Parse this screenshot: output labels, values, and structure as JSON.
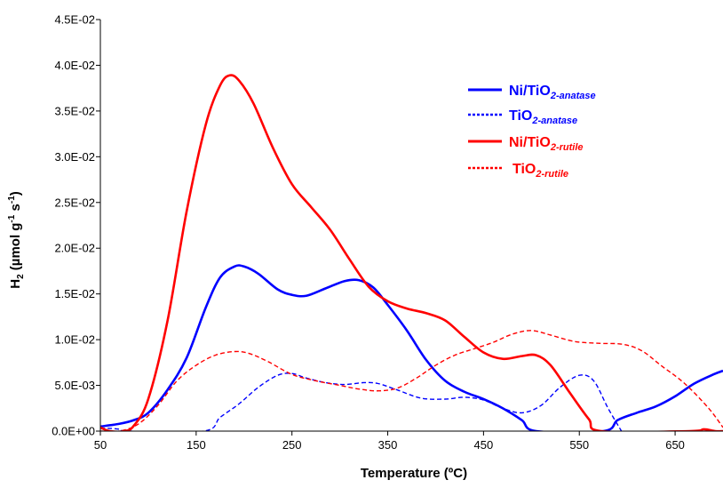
{
  "chart_data": {
    "type": "line",
    "xlabel": "Temperature (ºC)",
    "ylabel_main": "H",
    "ylabel_sub": "2",
    "ylabel_unit_a": " (µmol g",
    "ylabel_sup1": "-1",
    "ylabel_unit_b": " s",
    "ylabel_sup2": "-1",
    "ylabel_close": ")",
    "xlim": [
      50,
      700
    ],
    "ylim": [
      0,
      0.045
    ],
    "x_ticks": [
      50,
      150,
      250,
      350,
      450,
      550,
      650
    ],
    "x_tick_labels": [
      "50",
      "150",
      "250",
      "350",
      "450",
      "550",
      "650"
    ],
    "y_ticks": [
      0,
      0.005,
      0.01,
      0.015,
      0.02,
      0.025,
      0.03,
      0.035,
      0.04,
      0.045
    ],
    "y_tick_labels": [
      "0.0E+00",
      "5.0E-03",
      "1.0E-02",
      "1.5E-02",
      "2.0E-02",
      "2.5E-02",
      "3.0E-02",
      "3.5E-02",
      "4.0E-02",
      "4.5E-02"
    ],
    "grid": false,
    "legend_position": "top-right",
    "series": [
      {
        "name_main": "Ni/TiO",
        "name_sub": "2-anatase",
        "color": "#0000ff",
        "style": "solid",
        "points": [
          [
            50,
            0.0005
          ],
          [
            70,
            0.0008
          ],
          [
            85,
            0.0012
          ],
          [
            100,
            0.002
          ],
          [
            120,
            0.0045
          ],
          [
            140,
            0.008
          ],
          [
            160,
            0.0135
          ],
          [
            175,
            0.0168
          ],
          [
            190,
            0.018
          ],
          [
            200,
            0.018
          ],
          [
            215,
            0.0172
          ],
          [
            235,
            0.0155
          ],
          [
            250,
            0.0149
          ],
          [
            265,
            0.0148
          ],
          [
            285,
            0.0156
          ],
          [
            305,
            0.0164
          ],
          [
            320,
            0.0165
          ],
          [
            335,
            0.0157
          ],
          [
            350,
            0.0138
          ],
          [
            370,
            0.011
          ],
          [
            390,
            0.0078
          ],
          [
            410,
            0.0055
          ],
          [
            430,
            0.0043
          ],
          [
            450,
            0.0035
          ],
          [
            470,
            0.0025
          ],
          [
            490,
            0.0012
          ],
          [
            505,
            0.0
          ],
          [
            575,
            0.0
          ],
          [
            590,
            0.0012
          ],
          [
            610,
            0.002
          ],
          [
            630,
            0.0027
          ],
          [
            650,
            0.0038
          ],
          [
            670,
            0.0052
          ],
          [
            690,
            0.0062
          ],
          [
            700,
            0.0066
          ]
        ]
      },
      {
        "name_main": "TiO",
        "name_sub": "2-anatase",
        "color": "#0000ff",
        "style": "dashed",
        "points": [
          [
            50,
            0.0003
          ],
          [
            60,
            0.0003
          ],
          [
            70,
            0.0002
          ],
          [
            80,
            0.0
          ],
          [
            158,
            0.0
          ],
          [
            175,
            0.0015
          ],
          [
            195,
            0.003
          ],
          [
            215,
            0.0048
          ],
          [
            235,
            0.0061
          ],
          [
            250,
            0.0063
          ],
          [
            265,
            0.0058
          ],
          [
            285,
            0.0053
          ],
          [
            305,
            0.0051
          ],
          [
            325,
            0.0053
          ],
          [
            340,
            0.0052
          ],
          [
            360,
            0.0045
          ],
          [
            385,
            0.0036
          ],
          [
            410,
            0.0035
          ],
          [
            430,
            0.0037
          ],
          [
            450,
            0.0034
          ],
          [
            470,
            0.0025
          ],
          [
            490,
            0.002
          ],
          [
            510,
            0.0028
          ],
          [
            530,
            0.0048
          ],
          [
            550,
            0.0061
          ],
          [
            565,
            0.0055
          ],
          [
            580,
            0.0025
          ],
          [
            594,
            0.0
          ]
        ]
      },
      {
        "name_main": "Ni/TiO",
        "name_sub": "2-rutile",
        "color": "#ff0000",
        "style": "solid",
        "points": [
          [
            50,
            0.0004
          ],
          [
            60,
            0.0
          ],
          [
            75,
            0.0
          ],
          [
            85,
            0.0006
          ],
          [
            100,
            0.0035
          ],
          [
            120,
            0.012
          ],
          [
            140,
            0.024
          ],
          [
            160,
            0.0335
          ],
          [
            175,
            0.0378
          ],
          [
            185,
            0.0389
          ],
          [
            195,
            0.0383
          ],
          [
            210,
            0.0358
          ],
          [
            230,
            0.031
          ],
          [
            250,
            0.027
          ],
          [
            270,
            0.0245
          ],
          [
            290,
            0.022
          ],
          [
            310,
            0.0188
          ],
          [
            330,
            0.0158
          ],
          [
            350,
            0.0142
          ],
          [
            370,
            0.0134
          ],
          [
            390,
            0.0129
          ],
          [
            410,
            0.0121
          ],
          [
            430,
            0.0103
          ],
          [
            450,
            0.0086
          ],
          [
            470,
            0.0079
          ],
          [
            490,
            0.0082
          ],
          [
            505,
            0.0083
          ],
          [
            520,
            0.0072
          ],
          [
            540,
            0.0042
          ],
          [
            560,
            0.0013
          ],
          [
            573,
            0.0
          ],
          [
            665,
            0.0
          ],
          [
            680,
            0.0002
          ],
          [
            692,
            0.0
          ],
          [
            700,
            0.0
          ]
        ]
      },
      {
        "name_main": "TiO",
        "name_sub": "2-rutile",
        "color": "#ff0000",
        "style": "dashed",
        "points": [
          [
            50,
            0.0
          ],
          [
            70,
            0.0
          ],
          [
            90,
            0.0008
          ],
          [
            110,
            0.0028
          ],
          [
            130,
            0.0055
          ],
          [
            150,
            0.0072
          ],
          [
            170,
            0.0083
          ],
          [
            190,
            0.0087
          ],
          [
            205,
            0.0085
          ],
          [
            225,
            0.0076
          ],
          [
            250,
            0.0062
          ],
          [
            275,
            0.0055
          ],
          [
            300,
            0.005
          ],
          [
            320,
            0.0046
          ],
          [
            340,
            0.0044
          ],
          [
            360,
            0.0047
          ],
          [
            380,
            0.0058
          ],
          [
            400,
            0.0072
          ],
          [
            420,
            0.0083
          ],
          [
            440,
            0.009
          ],
          [
            460,
            0.0097
          ],
          [
            480,
            0.0106
          ],
          [
            500,
            0.011
          ],
          [
            520,
            0.0105
          ],
          [
            545,
            0.0098
          ],
          [
            570,
            0.0096
          ],
          [
            595,
            0.0095
          ],
          [
            615,
            0.0088
          ],
          [
            635,
            0.0072
          ],
          [
            660,
            0.0052
          ],
          [
            685,
            0.0025
          ],
          [
            700,
            0.0004
          ]
        ]
      }
    ]
  }
}
